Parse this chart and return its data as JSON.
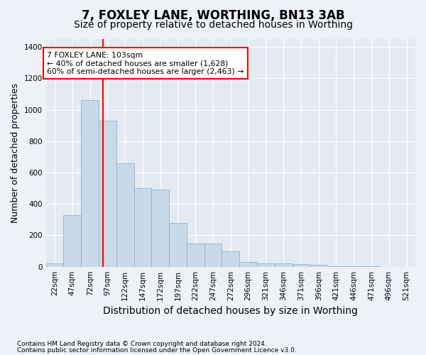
{
  "title": "7, FOXLEY LANE, WORTHING, BN13 3AB",
  "subtitle": "Size of property relative to detached houses in Worthing",
  "xlabel": "Distribution of detached houses by size in Worthing",
  "ylabel": "Number of detached properties",
  "footnote1": "Contains HM Land Registry data © Crown copyright and database right 2024.",
  "footnote2": "Contains public sector information licensed under the Open Government Licence v3.0.",
  "bar_labels": [
    "22sqm",
    "47sqm",
    "72sqm",
    "97sqm",
    "122sqm",
    "147sqm",
    "172sqm",
    "197sqm",
    "222sqm",
    "247sqm",
    "272sqm",
    "296sqm",
    "321sqm",
    "346sqm",
    "371sqm",
    "396sqm",
    "421sqm",
    "446sqm",
    "471sqm",
    "496sqm",
    "521sqm"
  ],
  "bar_values": [
    20,
    330,
    1060,
    930,
    660,
    500,
    490,
    280,
    150,
    150,
    100,
    30,
    20,
    20,
    15,
    10,
    5,
    2,
    1,
    0,
    0
  ],
  "bar_color": "#c9d9e8",
  "bar_edgecolor": "#8ab4d0",
  "annotation_line1": "7 FOXLEY LANE: 103sqm",
  "annotation_line2": "← 40% of detached houses are smaller (1,628)",
  "annotation_line3": "60% of semi-detached houses are larger (2,463) →",
  "ylim": [
    0,
    1450
  ],
  "yticks": [
    0,
    200,
    400,
    600,
    800,
    1000,
    1200,
    1400
  ],
  "background_color": "#eef2f7",
  "plot_bg_color": "#e4eaf2",
  "grid_color": "#ffffff",
  "title_fontsize": 12,
  "subtitle_fontsize": 10,
  "axis_label_fontsize": 9,
  "tick_fontsize": 7.5,
  "footnote_fontsize": 6.5
}
